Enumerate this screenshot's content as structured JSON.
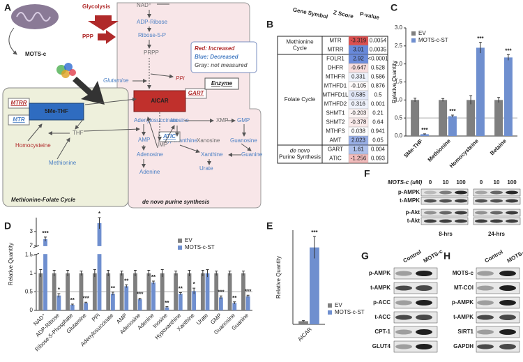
{
  "pathway": {
    "panel": "A",
    "glycolysis": "Glycolysis",
    "ppp": "PPP",
    "mots_c": "MOTS-c",
    "nodes": {
      "nad": "NAD⁺",
      "adp_ribose": "ADP-Ribose",
      "ribose_5_p": "Ribose-5-P",
      "prpp": "PRPP",
      "glutamine": "Glutamine",
      "ppi": "PPi",
      "imp": "IMP",
      "thf": "THF",
      "homocysteine": "Homocysteine",
      "methionine": "Methionine",
      "adenylosuccinate": "Adenylosuccinate",
      "inosine": "Inosine",
      "xmp": "XMP",
      "gmp": "GMP",
      "amp": "AMP",
      "hypoxanthine": "Hypoxanthine",
      "xanosine": "Xanosine",
      "guanosine": "Guanosine",
      "adenosine": "Adenosine",
      "xanthine": "Xanthine",
      "guanine": "Guanine",
      "adenine": "Adenine",
      "urate": "Urate"
    },
    "enzymes": {
      "mtrr": "MTRR",
      "mtr": "MTR",
      "gart": "GART",
      "atic": "ATIC"
    },
    "aicar": "AICAR",
    "me_thf": "5Me-THF",
    "legend": [
      "Red: Increased",
      "Blue: Decreased",
      "Gray: not measured"
    ],
    "enzyme_key": "Enzyme",
    "methionine_folate_cycle": "Methionine-Folate Cycle",
    "purine_synthesis": "de novo purine synthesis"
  },
  "table": {
    "panel": "B",
    "headers": [
      "Gene Symbol",
      "Z Score",
      "P-value"
    ],
    "groups": [
      {
        "name": [
          "Methionine",
          "Cycle"
        ],
        "rows": [
          [
            "MTR",
            -3.319,
            0.0054
          ],
          [
            "MTRR",
            3.01,
            0.0035
          ]
        ]
      },
      {
        "name": [
          "Folate Cycle"
        ],
        "rows": [
          [
            "FOLR1",
            2.92,
            "<0.0001"
          ],
          [
            "DHFR",
            -0.647,
            0.528
          ],
          [
            "MTHFR",
            0.331,
            0.586
          ],
          [
            "MTHFD1",
            -0.105,
            0.876
          ],
          [
            "MTHFD1L",
            0.585,
            0.5
          ],
          [
            "MTHFD2",
            0.316,
            0.001
          ],
          [
            "SHMT1",
            -0.203,
            0.21
          ],
          [
            "SHMT2",
            -0.378,
            0.64
          ],
          [
            "MTHFS",
            0.038,
            0.941
          ],
          [
            "AMT",
            2.023,
            0.05
          ]
        ]
      },
      {
        "name": [
          "de novo",
          "Purine Synthesis"
        ],
        "rows": [
          [
            "GART",
            1.61,
            0.004
          ],
          [
            "ATIC",
            -1.256,
            0.093
          ]
        ]
      }
    ]
  },
  "chart_data": [
    {
      "panel": "C",
      "type": "bar",
      "ylabel": "Relative Quantity",
      "categories": [
        "5Me-THF",
        "Methionine",
        "Homocysteine",
        "Betaine"
      ],
      "series": [
        {
          "name": "EV",
          "color": "#7f7f7f",
          "values": [
            1,
            1,
            1,
            1
          ],
          "errors": [
            0.05,
            0.04,
            0.12,
            0.07
          ]
        },
        {
          "name": "MOTS-c-ST",
          "color": "#6f8fcf",
          "values": [
            0.05,
            0.55,
            2.45,
            2.18
          ],
          "errors": [
            0.01,
            0.03,
            0.15,
            0.08
          ],
          "significance": [
            "***",
            "***",
            "***",
            "***"
          ]
        }
      ],
      "ylim": [
        0,
        3
      ],
      "yticks": [
        {
          "value": 0,
          "label": "0.0"
        },
        {
          "value": 0.5,
          "label": "0.5"
        },
        {
          "value": 1,
          "label": "1.0"
        },
        {
          "value": 1.5,
          "label": "1.5"
        },
        {
          "value": 2,
          "label": "2.0"
        },
        {
          "value": 2.5,
          "label": "2.5"
        },
        {
          "value": 3,
          "label": "3.0"
        }
      ],
      "reference_line": 0.5,
      "legend": "upper left"
    },
    {
      "panel": "D",
      "type": "bar",
      "ylabel": "Relative Quantity",
      "categories": [
        "NAD⁺",
        "ADP-Ribose",
        "Ribose-5-Phosphate",
        "Glutamine",
        "PPi",
        "Adenylosuccinate",
        "AMP",
        "Adenosine",
        "Adenine",
        "Inosine",
        "Hypoxanthine",
        "Xanthine",
        "Urate",
        "GMP",
        "Guanosine",
        "Guanine"
      ],
      "series": [
        {
          "name": "EV",
          "color": "#7f7f7f",
          "values": [
            1,
            1,
            1,
            1,
            1,
            1,
            1,
            1,
            1,
            1,
            1,
            1,
            1,
            1,
            1,
            1
          ],
          "errors": [
            0.1,
            0.08,
            0.08,
            0.06,
            0.1,
            0.08,
            0.06,
            0.08,
            0.08,
            0.1,
            0.06,
            0.08,
            0.08,
            0.06,
            0.06,
            0.06
          ]
        },
        {
          "name": "MOTS-c-ST",
          "color": "#6f8fcf",
          "values": [
            2.45,
            0.4,
            0.15,
            0.2,
            3.6,
            0.45,
            0.65,
            0.3,
            0.75,
            0.08,
            0.45,
            0.52,
            1.0,
            0.35,
            0.2,
            0.38
          ],
          "errors": [
            0.15,
            0.05,
            0.02,
            0.02,
            0.4,
            0.04,
            0.04,
            0.03,
            0.04,
            0.02,
            0.03,
            0.08,
            0.1,
            0.04,
            0.03,
            0.03
          ],
          "significance": [
            "***",
            "*",
            "**",
            "***",
            "*",
            "**",
            "**",
            "***",
            "**",
            "**",
            "**",
            "*",
            null,
            "***",
            "**",
            "***"
          ]
        }
      ],
      "ylim": [
        0,
        4
      ],
      "ybreak": [
        1.5,
        2
      ],
      "yticks": [
        0,
        0.5,
        1,
        1.5,
        2,
        3
      ],
      "reference_line": 0.5,
      "legend": "upper right"
    },
    {
      "panel": "E",
      "type": "bar",
      "ylabel": "Relative Quantity",
      "categories": [
        "AICAR"
      ],
      "series": [
        {
          "name": "EV",
          "color": "#7f7f7f",
          "values": [
            1
          ],
          "errors": [
            0.2
          ]
        },
        {
          "name": "MOTS-c-ST",
          "color": "#6f8fcf",
          "values": [
            24.5
          ],
          "errors": [
            3.5
          ],
          "significance": [
            "***"
          ]
        }
      ],
      "ylim": [
        0,
        30
      ],
      "yticks": [],
      "legend": "lower right"
    }
  ],
  "blots": {
    "F": {
      "panel": "F",
      "treatment": "MOTS-c (uM)",
      "lanes": [
        "0",
        "10",
        "100",
        "0",
        "10",
        "100"
      ],
      "rows": [
        "p-AMPK",
        "t-AMPK",
        "p-Akt",
        "t-Akt"
      ],
      "timepoints": [
        "8-hrs",
        "24-hrs"
      ]
    },
    "G": {
      "panel": "G",
      "columns": [
        "Control",
        "MOTS-c"
      ],
      "rows": [
        "p-AMPK",
        "t-AMPK",
        "p-ACC",
        "t-ACC",
        "CPT-1",
        "GLUT4"
      ]
    },
    "H": {
      "panel": "H",
      "columns": [
        "Control",
        "MOTS-c-ST"
      ],
      "rows": [
        "MOTS-c",
        "MT-COI",
        "p-AMPK",
        "t-AMPK",
        "SIRT1",
        "GAPDH"
      ]
    }
  }
}
